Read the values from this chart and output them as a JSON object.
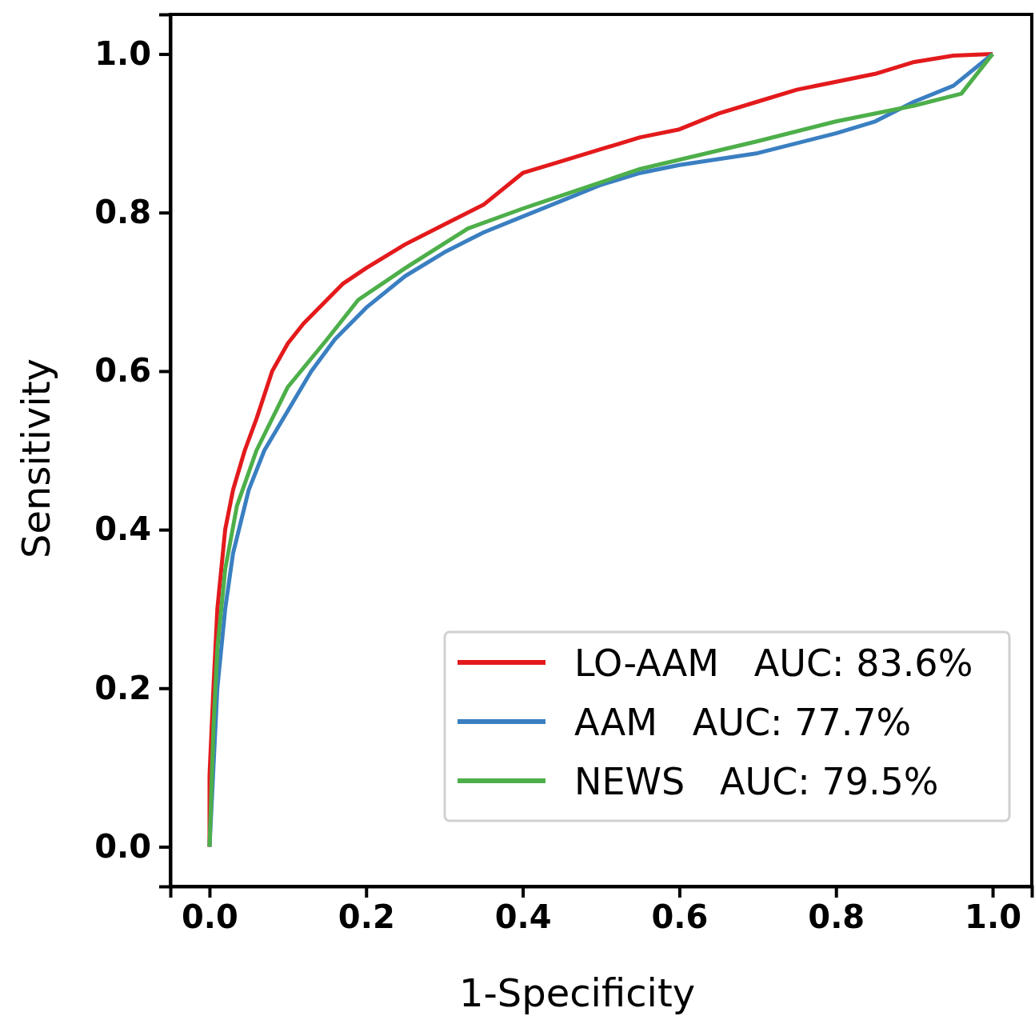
{
  "chart_data": {
    "type": "line",
    "xlabel": "1-Specificity",
    "ylabel": "Sensitivity",
    "xlim": [
      -0.05,
      1.05
    ],
    "ylim": [
      -0.05,
      1.05
    ],
    "xticks": [
      {
        "value": 0,
        "label": "0.0"
      },
      0.2,
      0.4,
      0.6,
      0.8,
      {
        "value": 1,
        "label": "1.0"
      }
    ],
    "yticks": [
      {
        "value": 0,
        "label": "0.0"
      },
      0.2,
      0.4,
      0.6,
      0.8,
      {
        "value": 1,
        "label": "1.0"
      }
    ],
    "legend": "bottom right",
    "grid": false,
    "marker": "none",
    "line_style": "solid",
    "series": [
      {
        "name": "LO-AAM   AUC: 83.6%",
        "color": "#e31a1c",
        "x": [
          0,
          0,
          0.005,
          0.01,
          0.02,
          0.03,
          0.045,
          0.06,
          0.08,
          0.1,
          0.12,
          0.15,
          0.17,
          0.2,
          0.25,
          0.3,
          0.35,
          0.4,
          0.45,
          0.5,
          0.55,
          0.6,
          0.65,
          0.7,
          0.75,
          0.8,
          0.85,
          0.9,
          0.95,
          1
        ],
        "values": [
          0,
          0.09,
          0.2,
          0.3,
          0.4,
          0.45,
          0.5,
          0.54,
          0.6,
          0.635,
          0.66,
          0.69,
          0.71,
          0.73,
          0.76,
          0.785,
          0.81,
          0.85,
          0.865,
          0.88,
          0.895,
          0.905,
          0.925,
          0.94,
          0.955,
          0.965,
          0.975,
          0.99,
          0.998,
          1
        ]
      },
      {
        "name": "AAM   AUC: 77.7%",
        "color": "#3a7fc1",
        "x": [
          0,
          0.005,
          0.01,
          0.02,
          0.03,
          0.05,
          0.07,
          0.1,
          0.13,
          0.16,
          0.2,
          0.25,
          0.3,
          0.35,
          0.4,
          0.45,
          0.5,
          0.55,
          0.6,
          0.7,
          0.8,
          0.85,
          0.9,
          0.95,
          1
        ],
        "values": [
          0,
          0.1,
          0.2,
          0.3,
          0.37,
          0.45,
          0.5,
          0.55,
          0.6,
          0.64,
          0.68,
          0.72,
          0.75,
          0.775,
          0.795,
          0.815,
          0.835,
          0.85,
          0.86,
          0.875,
          0.9,
          0.915,
          0.94,
          0.96,
          1
        ]
      },
      {
        "name": "NEWS   AUC: 79.5%",
        "color": "#4daf4a",
        "x": [
          0,
          0.005,
          0.01,
          0.02,
          0.035,
          0.06,
          0.1,
          0.15,
          0.19,
          0.25,
          0.33,
          0.4,
          0.55,
          0.7,
          0.8,
          0.9,
          0.96,
          1
        ],
        "values": [
          0,
          0.15,
          0.25,
          0.35,
          0.43,
          0.5,
          0.58,
          0.64,
          0.69,
          0.73,
          0.78,
          0.805,
          0.855,
          0.89,
          0.915,
          0.935,
          0.95,
          1
        ]
      }
    ]
  }
}
